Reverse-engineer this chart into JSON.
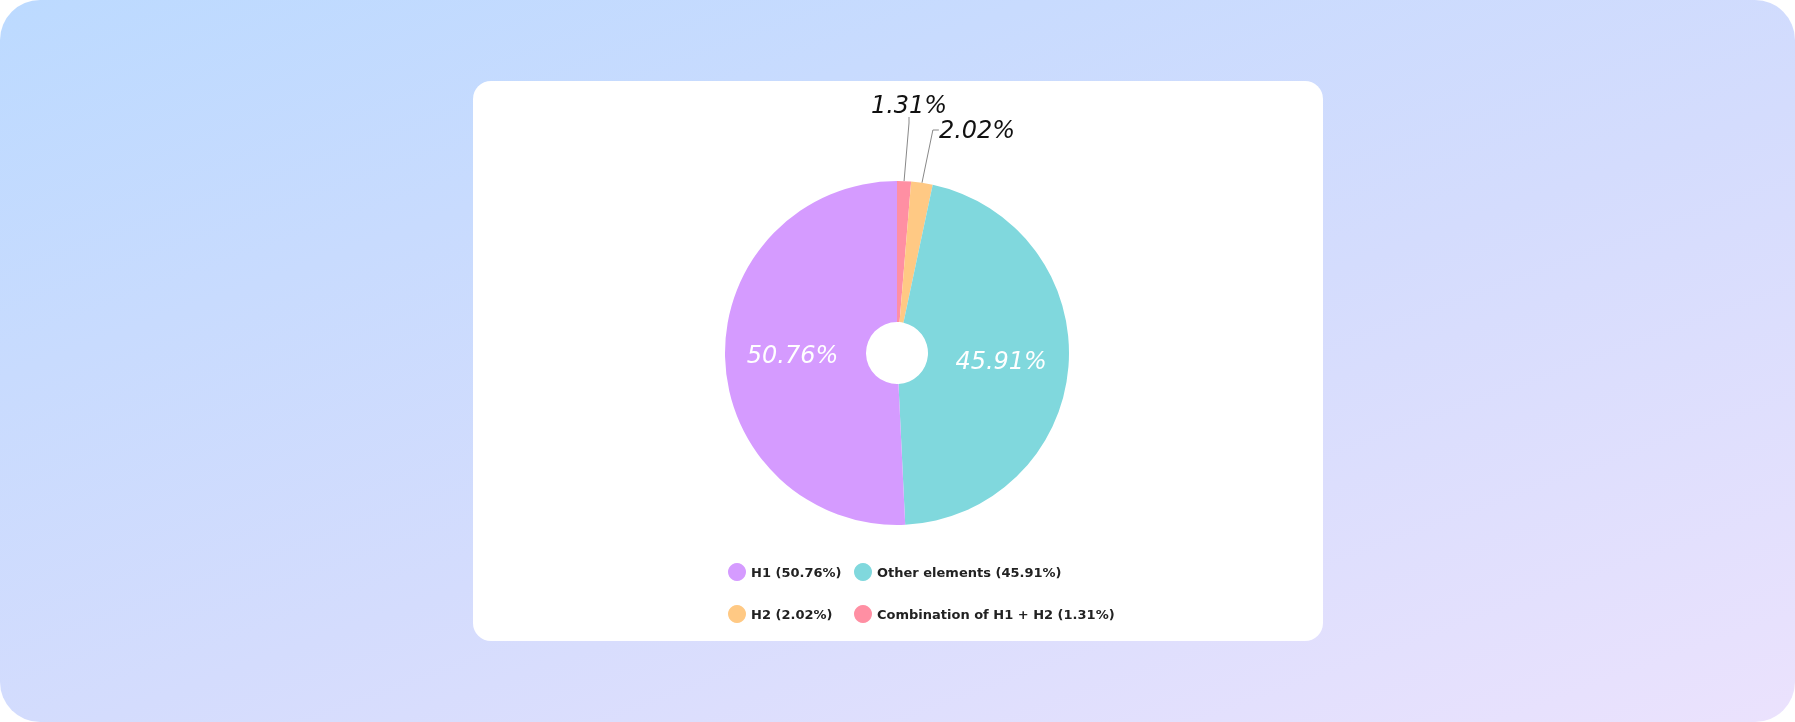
{
  "chart_data": {
    "type": "donut",
    "categories": [
      "Combination of H1 + H2 (1.31%)",
      "H2 (2.02%)",
      "Other elements (45.91%)",
      "H1 (50.76%)"
    ],
    "values": [
      1.31,
      2.02,
      45.91,
      50.76
    ],
    "value_labels": [
      "1.31%",
      "2.02%",
      "45.91%",
      "50.76%"
    ],
    "colors": [
      "#ff8fa3",
      "#ffc984",
      "#80d8dd",
      "#d59bff"
    ],
    "legend": "bottom"
  }
}
